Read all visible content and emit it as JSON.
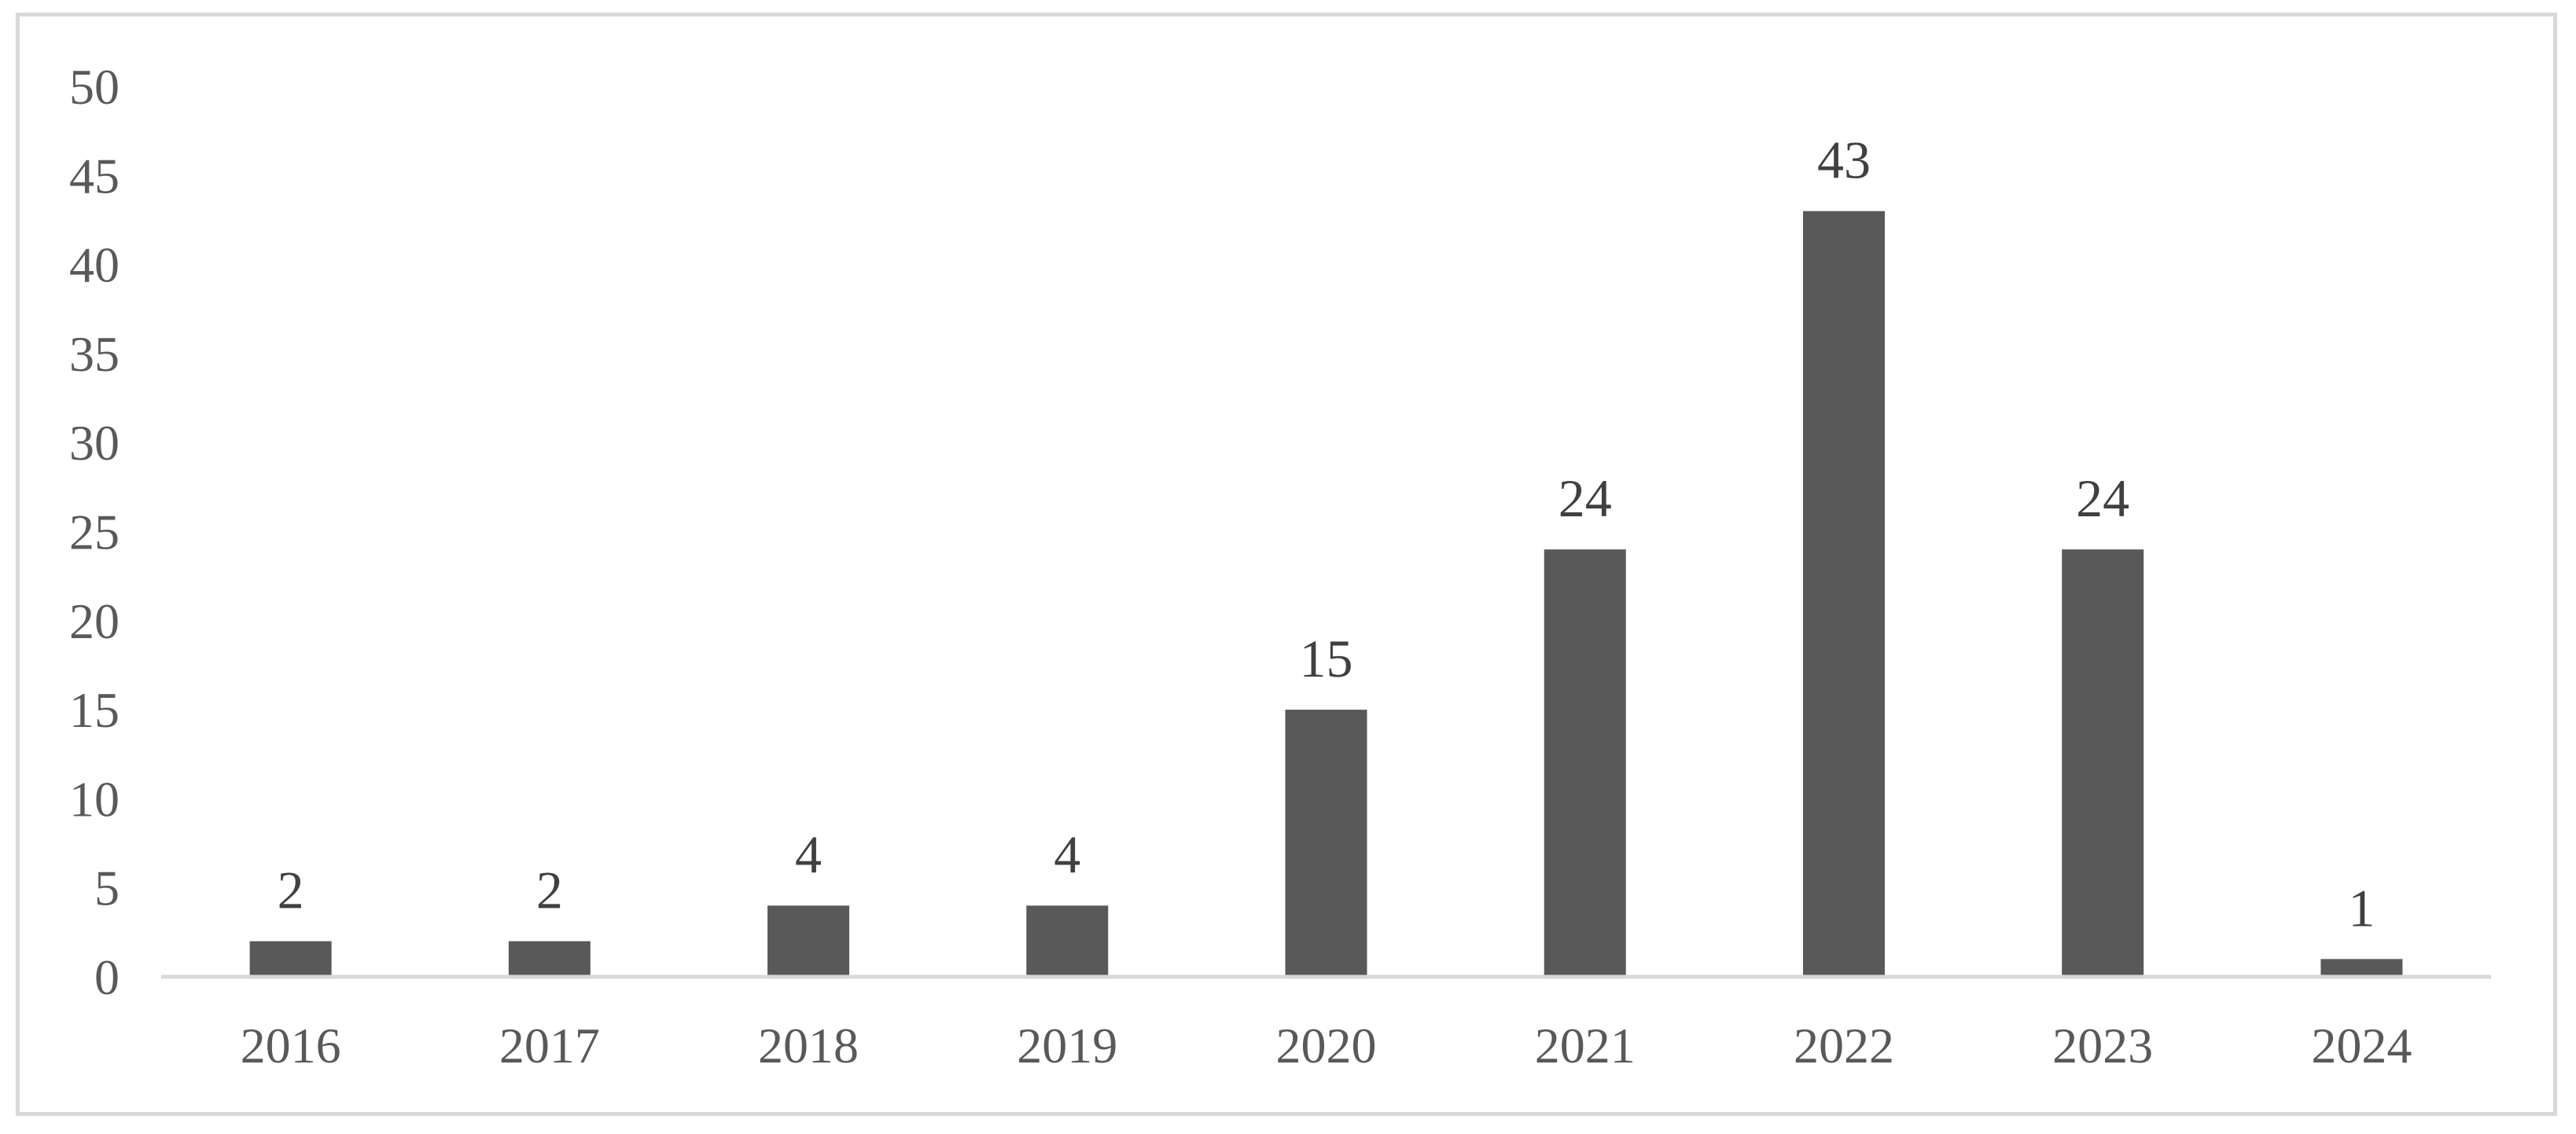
{
  "chart_data": {
    "type": "bar",
    "title": "",
    "xlabel": "",
    "ylabel": "",
    "categories": [
      "2016",
      "2017",
      "2018",
      "2019",
      "2020",
      "2021",
      "2022",
      "2023",
      "2024"
    ],
    "values": [
      2,
      2,
      4,
      4,
      15,
      24,
      43,
      24,
      1
    ],
    "data_labels": [
      "2",
      "2",
      "4",
      "4",
      "15",
      "24",
      "43",
      "24",
      "1"
    ],
    "ylim": [
      0,
      50
    ],
    "yticks": [
      "0",
      "5",
      "10",
      "15",
      "20",
      "25",
      "30",
      "35",
      "40",
      "45",
      "50"
    ],
    "grid": false,
    "legend": "none",
    "bar_color": "#595959",
    "axis_color": "#d9d9d9"
  }
}
